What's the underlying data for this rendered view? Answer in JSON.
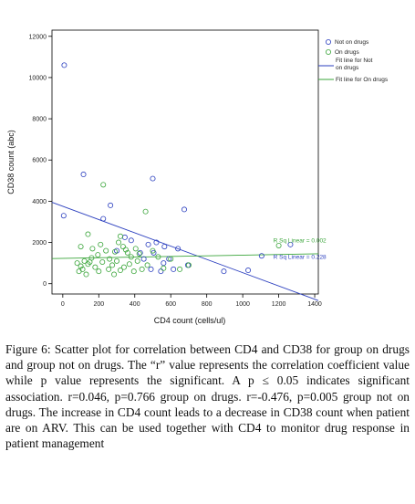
{
  "chart_data": {
    "type": "scatter",
    "xlabel": "CD4 count (cells/ul)",
    "ylabel": "CD38 count (abc)",
    "xlim": [
      -60,
      1420
    ],
    "ylim": [
      -500,
      12300
    ],
    "xticks": [
      0,
      200,
      400,
      600,
      800,
      1000,
      1200,
      1400
    ],
    "yticks": [
      0,
      2000,
      4000,
      6000,
      8000,
      10000,
      12000
    ],
    "xtick_labels": [
      "0",
      "200",
      "400",
      "600",
      "800",
      "1000",
      "1200",
      "1400"
    ],
    "ytick_labels": [
      "0",
      "2000",
      "4000",
      "6000",
      "8000",
      "10000",
      "12000"
    ],
    "grid": false,
    "legend_position": "top-right",
    "series": [
      {
        "name": "Not on drugs",
        "color": "#2b3fbf",
        "marker": "circle",
        "points": [
          [
            8,
            10600
          ],
          [
            5,
            3300
          ],
          [
            115,
            5300
          ],
          [
            225,
            3150
          ],
          [
            265,
            3800
          ],
          [
            345,
            2250
          ],
          [
            500,
            5100
          ],
          [
            675,
            3600
          ],
          [
            565,
            1800
          ],
          [
            590,
            1200
          ],
          [
            505,
            1500
          ],
          [
            560,
            1000
          ],
          [
            490,
            700
          ],
          [
            450,
            1200
          ],
          [
            615,
            700
          ],
          [
            475,
            1900
          ],
          [
            695,
            900
          ],
          [
            895,
            600
          ],
          [
            1030,
            650
          ],
          [
            1105,
            1350
          ],
          [
            1265,
            1900
          ],
          [
            640,
            1700
          ],
          [
            380,
            2100
          ],
          [
            430,
            1500
          ],
          [
            520,
            2000
          ],
          [
            300,
            1600
          ],
          [
            545,
            600
          ]
        ]
      },
      {
        "name": "On drugs",
        "color": "#3aa53a",
        "marker": "circle",
        "points": [
          [
            225,
            4800
          ],
          [
            460,
            3500
          ],
          [
            140,
            2400
          ],
          [
            100,
            1800
          ],
          [
            165,
            1700
          ],
          [
            195,
            1400
          ],
          [
            210,
            1900
          ],
          [
            240,
            1600
          ],
          [
            290,
            1550
          ],
          [
            310,
            2000
          ],
          [
            335,
            1800
          ],
          [
            360,
            1500
          ],
          [
            380,
            1300
          ],
          [
            405,
            1700
          ],
          [
            425,
            1450
          ],
          [
            80,
            1000
          ],
          [
            100,
            850
          ],
          [
            120,
            1100
          ],
          [
            140,
            950
          ],
          [
            160,
            1250
          ],
          [
            180,
            800
          ],
          [
            200,
            600
          ],
          [
            220,
            1050
          ],
          [
            255,
            700
          ],
          [
            275,
            900
          ],
          [
            300,
            1100
          ],
          [
            320,
            650
          ],
          [
            340,
            800
          ],
          [
            370,
            950
          ],
          [
            395,
            600
          ],
          [
            415,
            1100
          ],
          [
            440,
            700
          ],
          [
            470,
            900
          ],
          [
            530,
            1300
          ],
          [
            560,
            750
          ],
          [
            600,
            1200
          ],
          [
            650,
            700
          ],
          [
            700,
            900
          ],
          [
            1200,
            1850
          ],
          [
            90,
            600
          ],
          [
            130,
            450
          ],
          [
            260,
            1200
          ],
          [
            285,
            450
          ],
          [
            320,
            2300
          ],
          [
            350,
            1650
          ],
          [
            500,
            1600
          ],
          [
            150,
            1050
          ],
          [
            110,
            700
          ]
        ]
      }
    ],
    "fit_lines": [
      {
        "name": "Fit line for Not on drugs",
        "color": "#2b3fbf",
        "x": [
          -60,
          1420
        ],
        "y": [
          3950,
          -820
        ]
      },
      {
        "name": "Fit line for On drugs",
        "color": "#3aa53a",
        "x": [
          -60,
          1420
        ],
        "y": [
          1220,
          1450
        ]
      }
    ],
    "annotations": [
      {
        "text": "R Sq Linear = 0.002",
        "color": "#3aa53a",
        "x": 1170,
        "y": 2000
      },
      {
        "text": "R Sq Linear = 0.228",
        "color": "#2b3fbf",
        "x": 1170,
        "y": 1200
      }
    ]
  },
  "legend": {
    "items": [
      {
        "label": "Not on drugs",
        "kind": "marker",
        "color": "#2b3fbf"
      },
      {
        "label": "On drugs",
        "kind": "marker",
        "color": "#3aa53a"
      },
      {
        "label": "Fit line for Not on drugs",
        "kind": "line",
        "color": "#2b3fbf"
      },
      {
        "label": "Fit line for On drugs",
        "kind": "line",
        "color": "#3aa53a"
      }
    ]
  },
  "caption": {
    "label": "Figure 6:",
    "text": "Scatter plot for correlation between CD4 and CD38 for group on drugs and group not on drugs. The “r” value represents the correlation coefficient value while p value represents the significant. A p ≤ 0.05 indicates significant association. r=0.046, p=0.766 group on drugs. r=-0.476, p=0.005 group not on drugs. The increase in CD4 count leads to a decrease in CD38 count when patient are on ARV. This can be used together with CD4 to monitor drug response in patient management"
  }
}
